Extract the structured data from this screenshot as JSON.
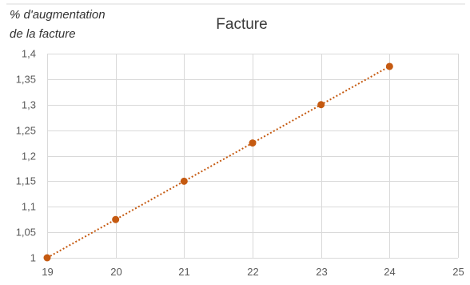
{
  "chart_data": {
    "type": "scatter",
    "title": "Facture",
    "ylabel_lines": [
      "% d'augmentation",
      "de la facture"
    ],
    "xlabel": "",
    "x": [
      19,
      20,
      21,
      22,
      23,
      24
    ],
    "y": [
      1.0,
      1.075,
      1.15,
      1.225,
      1.3,
      1.375
    ],
    "xlim": [
      19,
      25
    ],
    "ylim": [
      1,
      1.4
    ],
    "x_ticks": [
      "19",
      "20",
      "21",
      "22",
      "23",
      "24",
      "25"
    ],
    "y_ticks": [
      "1",
      "1,05",
      "1,1",
      "1,15",
      "1,2",
      "1,25",
      "1,3",
      "1,35",
      "1,4"
    ],
    "grid": true,
    "trendline": "dotted linear",
    "marker_color": "#c55a11",
    "trendline_color": "#c55a11",
    "grid_color": "#d9d9d9"
  }
}
